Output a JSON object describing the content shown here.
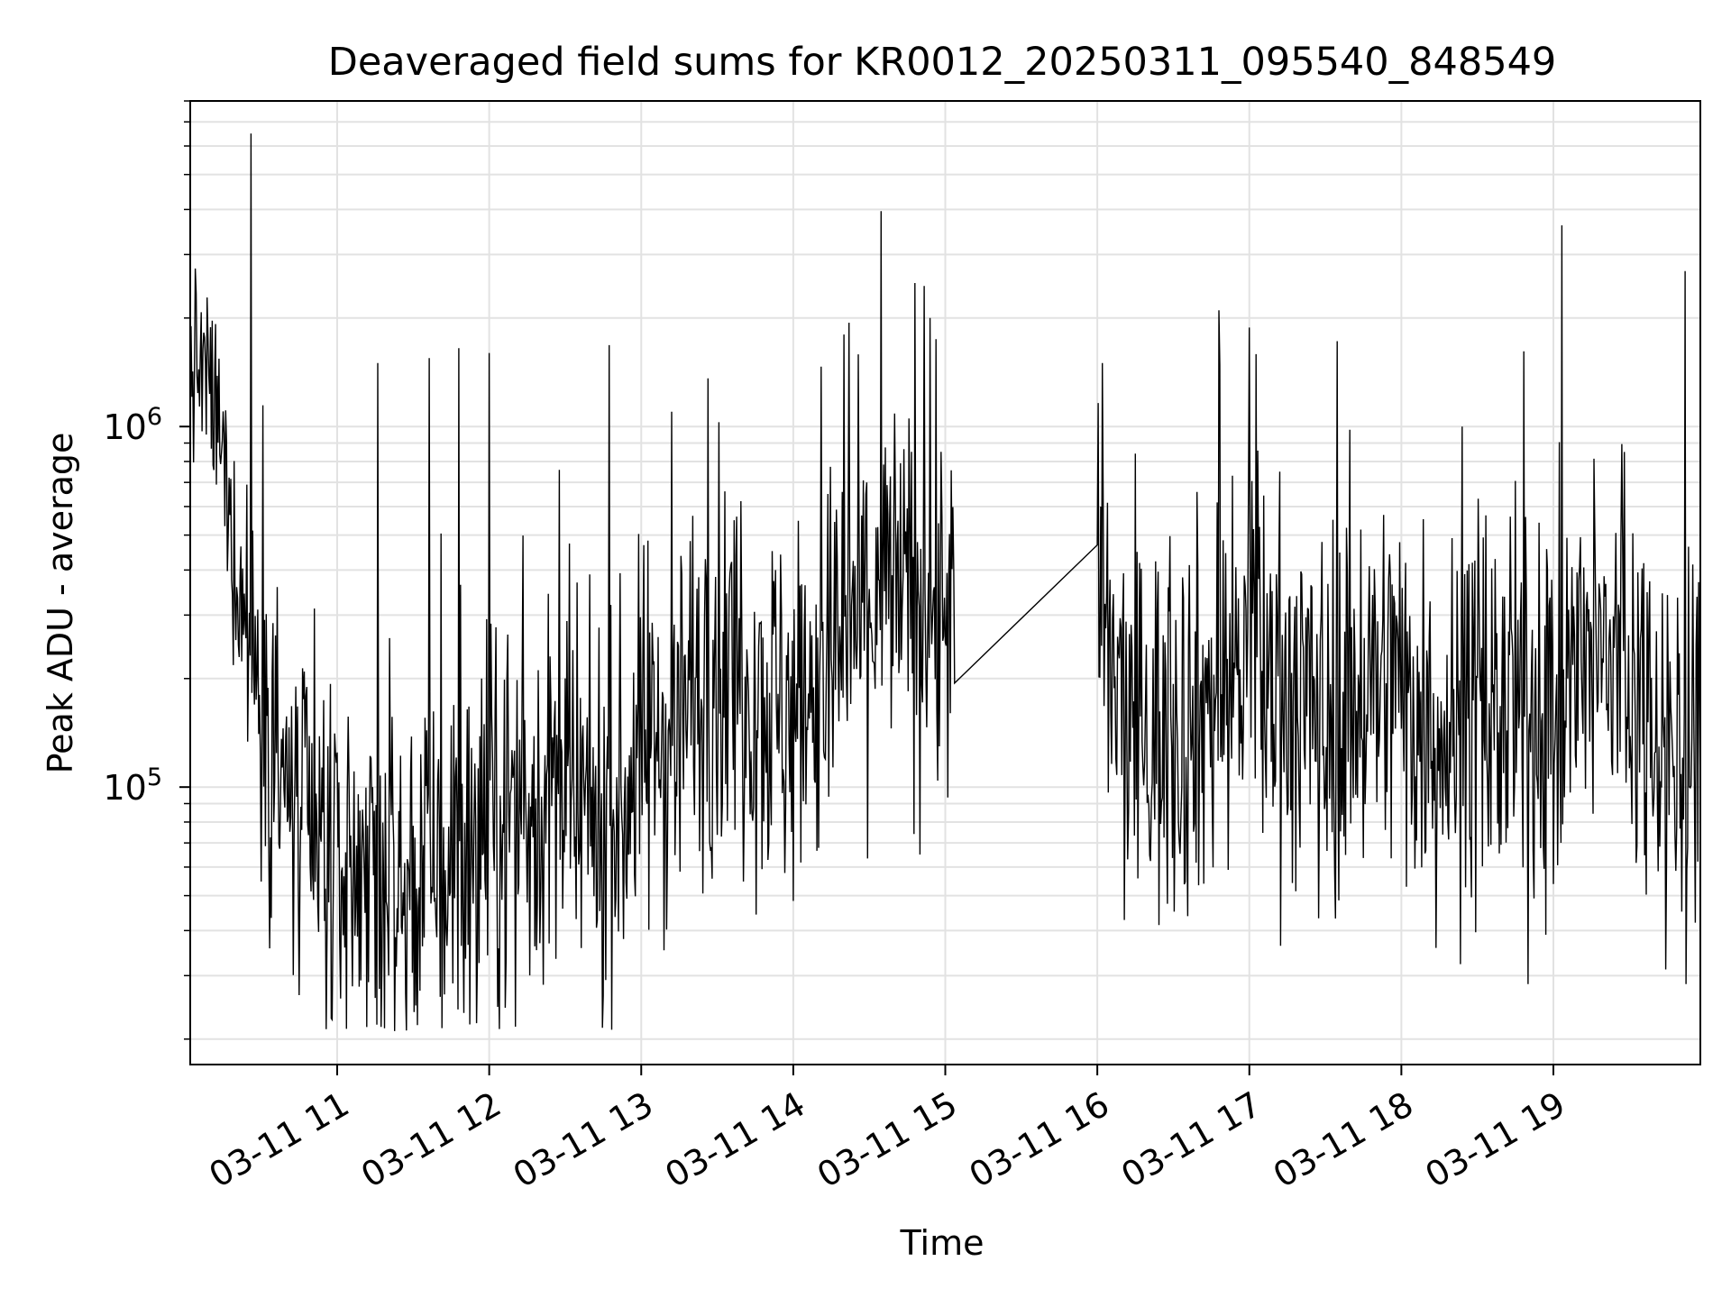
{
  "chart_data": {
    "type": "line",
    "title": "Deaveraged field sums for KR0012_20250311_095540_848549",
    "xlabel": "Time",
    "ylabel": "Peak ADU - average",
    "yscale": "log",
    "ylim": [
      17000,
      8000000
    ],
    "xlim": [
      "2025-03-11 10:02",
      "2025-03-11 19:58"
    ],
    "grid": true,
    "x_tick_labels": [
      "03-11 11",
      "03-11 12",
      "03-11 13",
      "03-11 14",
      "03-11 15",
      "03-11 16",
      "03-11 17",
      "03-11 18",
      "03-11 19"
    ],
    "y_tick_labels": [
      {
        "value": 100000,
        "base": "10",
        "exp": "5"
      },
      {
        "value": 1000000,
        "base": "10",
        "exp": "6"
      }
    ],
    "series_color": "#000000",
    "series": [
      {
        "x": [
          "2025-03-11 10:02",
          "2025-03-11 10:08",
          "2025-03-11 10:12",
          "2025-03-11 10:16",
          "2025-03-11 10:20",
          "2025-03-11 10:30",
          "2025-03-11 10:40",
          "2025-03-11 10:50",
          "2025-03-11 11:00",
          "2025-03-11 11:10",
          "2025-03-11 11:20",
          "2025-03-11 11:30",
          "2025-03-11 11:40",
          "2025-03-11 11:50",
          "2025-03-11 12:00",
          "2025-03-11 12:10",
          "2025-03-11 12:20",
          "2025-03-11 12:30",
          "2025-03-11 12:40",
          "2025-03-11 12:50",
          "2025-03-11 13:00",
          "2025-03-11 13:10",
          "2025-03-11 13:20",
          "2025-03-11 13:30",
          "2025-03-11 13:40",
          "2025-03-11 13:50",
          "2025-03-11 14:00",
          "2025-03-11 14:10",
          "2025-03-11 14:20",
          "2025-03-11 14:30",
          "2025-03-11 14:40",
          "2025-03-11 14:50",
          "2025-03-11 15:00",
          "2025-03-11 15:04",
          "2025-03-11 16:00",
          "2025-03-11 16:10",
          "2025-03-11 16:20",
          "2025-03-11 16:30",
          "2025-03-11 16:40",
          "2025-03-11 16:50",
          "2025-03-11 17:00",
          "2025-03-11 17:10",
          "2025-03-11 17:20",
          "2025-03-11 17:30",
          "2025-03-11 17:40",
          "2025-03-11 17:50",
          "2025-03-11 18:00",
          "2025-03-11 18:10",
          "2025-03-11 18:20",
          "2025-03-11 18:30",
          "2025-03-11 18:40",
          "2025-03-11 18:50",
          "2025-03-11 19:00",
          "2025-03-11 19:10",
          "2025-03-11 19:20",
          "2025-03-11 19:30",
          "2025-03-11 19:40",
          "2025-03-11 19:50",
          "2025-03-11 19:58"
        ],
        "y": [
          1500000,
          1400000,
          1100000,
          700000,
          400000,
          180000,
          90000,
          65000,
          60000,
          55000,
          50000,
          50000,
          60000,
          65000,
          80000,
          85000,
          95000,
          90000,
          75000,
          80000,
          130000,
          140000,
          180000,
          230000,
          220000,
          170000,
          160000,
          200000,
          250000,
          330000,
          360000,
          310000,
          300000,
          330000,
          300000,
          150000,
          140000,
          150000,
          160000,
          200000,
          230000,
          190000,
          170000,
          150000,
          180000,
          190000,
          200000,
          150000,
          140000,
          150000,
          160000,
          150000,
          170000,
          200000,
          220000,
          200000,
          170000,
          110000,
          100000
        ],
        "spikes": [
          [
            "2025-03-11 10:26",
            6500000
          ],
          [
            "2025-03-11 11:16",
            1500000
          ],
          [
            "2025-03-11 11:48",
            1650000
          ],
          [
            "2025-03-11 12:00",
            1600000
          ],
          [
            "2025-03-11 13:12",
            1100000
          ],
          [
            "2025-03-11 14:20",
            1800000
          ],
          [
            "2025-03-11 14:48",
            2500000
          ],
          [
            "2025-03-11 14:54",
            2000000
          ],
          [
            "2025-03-11 16:02",
            1500000
          ],
          [
            "2025-03-11 16:48",
            2100000
          ],
          [
            "2025-03-11 17:12",
            750000
          ],
          [
            "2025-03-11 18:24",
            1000000
          ],
          [
            "2025-03-11 19:28",
            850000
          ],
          [
            "2025-03-11 19:52",
            2700000
          ]
        ]
      }
    ]
  }
}
